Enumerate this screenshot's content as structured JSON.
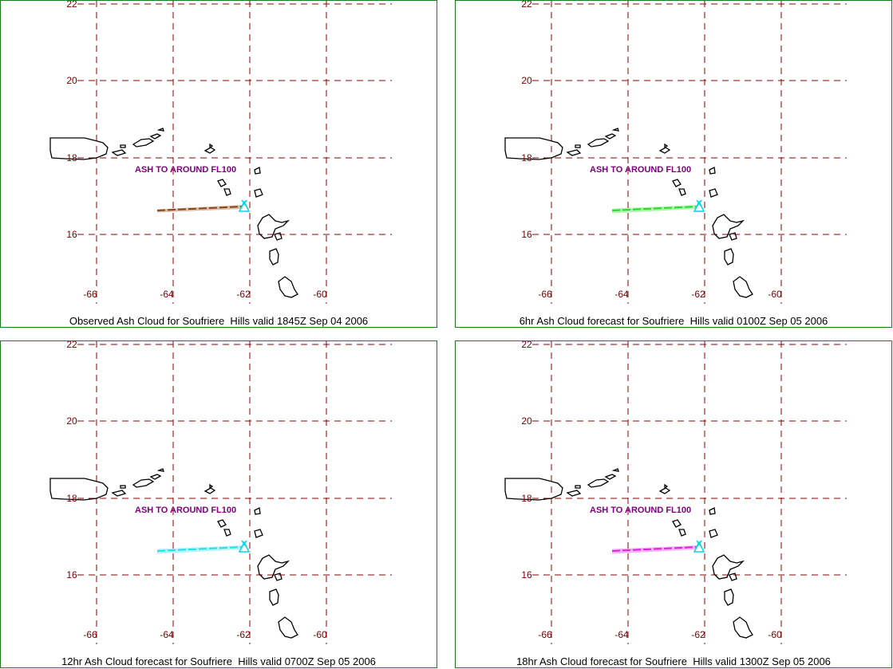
{
  "map": {
    "x_ticks": [
      "-66",
      "-64",
      "-62",
      "-60"
    ],
    "y_ticks": [
      "22",
      "20",
      "18",
      "16"
    ],
    "grid_color": "#8b0000",
    "coast_color": "#000000"
  },
  "panels": [
    {
      "caption": "Observed Ash Cloud for Soufriere  Hills valid 1845Z Sep 04 2006",
      "annotation": "ASH TO AROUND FL100",
      "plume_color": "#8b4513",
      "marker_color": "#00d8e8"
    },
    {
      "caption": "6hr Ash Cloud forecast for Soufriere  Hills valid 0100Z Sep 05 2006",
      "annotation": "ASH TO AROUND FL100",
      "plume_color": "#22dd22",
      "marker_color": "#00d8e8"
    },
    {
      "caption": "12hr Ash Cloud forecast for Soufriere  Hills valid 0700Z Sep 05 2006",
      "annotation": "ASH TO AROUND FL100",
      "plume_color": "#22e0e8",
      "marker_color": "#00d8e8"
    },
    {
      "caption": "18hr Ash Cloud forecast for Soufriere  Hills valid 1300Z Sep 05 2006",
      "annotation": "ASH TO AROUND FL100",
      "plume_color": "#e020e0",
      "marker_color": "#00d8e8"
    }
  ]
}
